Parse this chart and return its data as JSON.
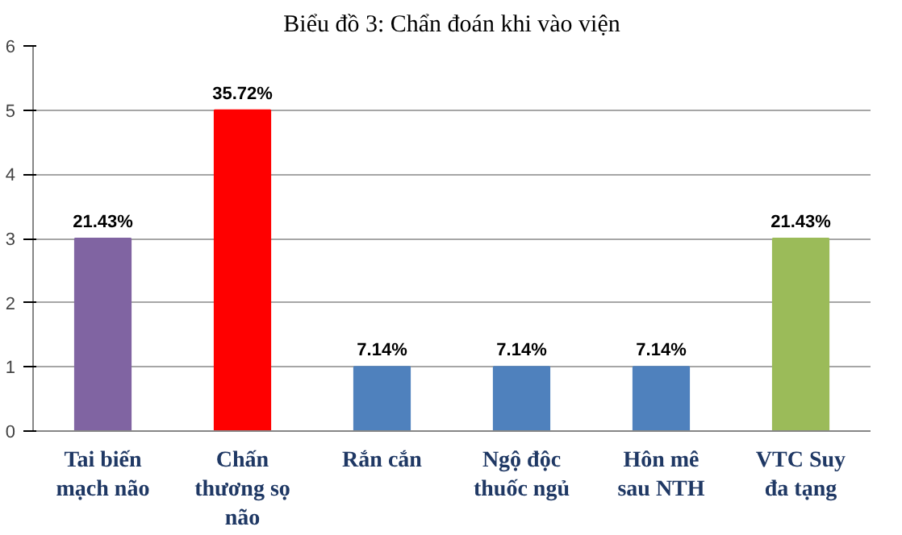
{
  "chart_data": {
    "type": "bar",
    "title": "Biểu đồ 3: Chẩn đoán khi vào viện",
    "categories": [
      "Tai biến\nmạch não",
      "Chấn\nthương sọ\nnão",
      "Rắn cắn",
      "Ngộ độc\nthuốc ngủ",
      "Hôn mê\nsau NTH",
      "VTC Suy\nđa tạng"
    ],
    "values": [
      3,
      5,
      1,
      1,
      1,
      3
    ],
    "colors": [
      "#8064a2",
      "#ff0000",
      "#4f81bd",
      "#4f81bd",
      "#4f81bd",
      "#9bbb59"
    ],
    "annotations": [
      {
        "text": "21.43%",
        "x": "Tai biến\nmạch não",
        "y": 3
      },
      {
        "text": "35.72%",
        "x": "Chấn\nthương sọ\nnão",
        "y": 5
      },
      {
        "text": "7.14%",
        "x": "Rắn cắn",
        "y": 1
      },
      {
        "text": "7.14%",
        "x": "Ngộ độc\nthuốc ngủ",
        "y": 1
      },
      {
        "text": "7.14%",
        "x": "Hôn mê\nsau NTH",
        "y": 1
      },
      {
        "text": "21.43%",
        "x": "VTC Suy\nđa tạng",
        "y": 3
      }
    ],
    "ylim": [
      0,
      6
    ],
    "yticks": [
      0,
      1,
      2,
      3,
      4,
      5,
      6
    ],
    "grid": "y"
  }
}
